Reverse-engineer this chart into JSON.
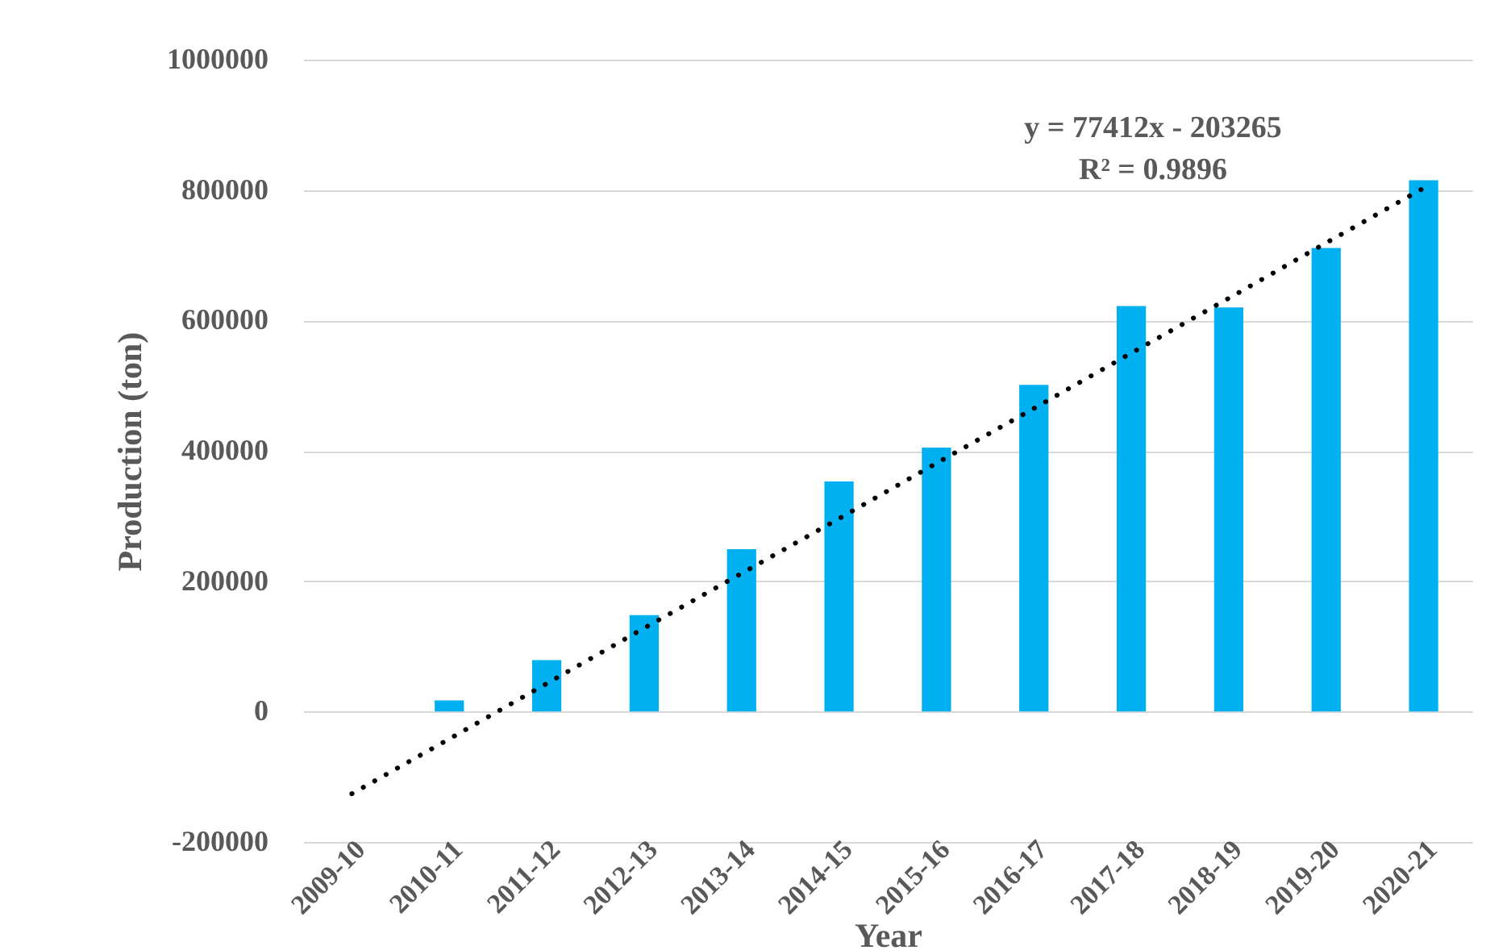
{
  "chart_data": {
    "type": "bar",
    "xlabel": "Year",
    "ylabel": "Production (ton)",
    "categories": [
      "2009-10",
      "2010-11",
      "2011-12",
      "2012-13",
      "2013-14",
      "2014-15",
      "2015-16",
      "2016-17",
      "2017-18",
      "2018-19",
      "2019-20",
      "2020-21"
    ],
    "series": [
      {
        "color": "#00b0f0",
        "values": [
          0,
          17000,
          79000,
          148000,
          249000,
          353000,
          405000,
          501000,
          622000,
          620000,
          711000,
          815000
        ]
      },
      {
        "type": "line",
        "color": "#000000",
        "line_style": "dotted",
        "values": [
          -126000,
          -42000,
          43000,
          128000,
          212000,
          296000,
          381000,
          465000,
          550000,
          634000,
          719000,
          803000
        ]
      }
    ],
    "ylim": [
      -200000,
      1000000
    ],
    "yticks": [
      -200000,
      0,
      200000,
      400000,
      600000,
      800000,
      1000000
    ],
    "grid": "y",
    "annotations": [
      "y = 77412x - 203265",
      "R² = 0.9896"
    ]
  }
}
